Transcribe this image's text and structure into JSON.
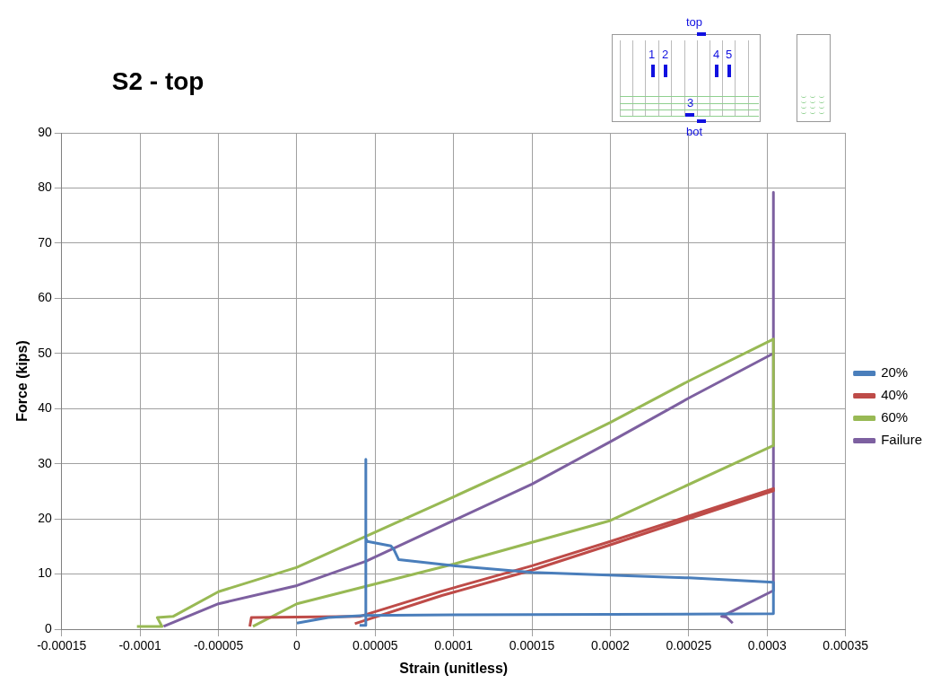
{
  "chart_data": {
    "type": "line",
    "title": "S2 - top",
    "xlabel": "Strain (unitless)",
    "ylabel": "Force (kips)",
    "xlim": [
      -0.00015,
      0.00035
    ],
    "xticks": [
      -0.00015,
      -0.0001,
      {
        "value": -5e-05,
        "label": "-0.00005"
      },
      0,
      {
        "value": 5e-05,
        "label": "0.00005"
      },
      0.0001,
      0.00015,
      0.0002,
      0.00025,
      0.0003,
      0.00035
    ],
    "ylim": [
      0,
      90
    ],
    "yticks": [
      0,
      10,
      20,
      30,
      40,
      50,
      60,
      70,
      80,
      90
    ],
    "grid": true,
    "legend": "right",
    "annotations": [
      "top",
      "1",
      "2",
      "3",
      "4",
      "5",
      "bot"
    ],
    "series": [
      {
        "name": "20%",
        "color": "#4a7ebb",
        "x": [
          0,
          2e-05,
          4.3e-05,
          0.0001,
          0.0002,
          0.000304,
          0.000304,
          0.00025,
          0.00015,
          0.0001,
          6.5e-05,
          6.2e-05,
          6e-05,
          4.5e-05,
          4.4e-05,
          4.4e-05,
          4.4e-05,
          4e-05
        ],
        "values": [
          1.1,
          2.1,
          2.5,
          2.6,
          2.7,
          2.8,
          8.5,
          9.3,
          10.3,
          11.5,
          12.6,
          14.4,
          15.1,
          15.9,
          16.5,
          30.8,
          0.7,
          0.7
        ]
      },
      {
        "name": "40%",
        "color": "#be4b48",
        "x": [
          -3e-05,
          -2.9e-05,
          0,
          4e-05,
          9.25e-05,
          0.00015,
          0.0002,
          0.00025,
          0.000304,
          0.000304,
          0.00025,
          0.0002,
          0.00015,
          9.25e-05,
          3.7e-05
        ],
        "values": [
          0.5,
          2.1,
          2.2,
          2.3,
          6.9,
          11.5,
          15.9,
          20.5,
          25.5,
          25.1,
          20,
          15.3,
          10.7,
          6.1,
          1
        ]
      },
      {
        "name": "60%",
        "color": "#98b954",
        "x": [
          -0.000102,
          -8.6e-05,
          -8.9e-05,
          -7.9e-05,
          -5e-05,
          0,
          5e-05,
          0.0001,
          0.00015,
          0.0002,
          0.00025,
          0.000304,
          0.000304,
          0.0002,
          0.0001,
          0,
          -2.8e-05
        ],
        "values": [
          0.5,
          0.5,
          2.1,
          2.3,
          6.8,
          11.2,
          17.6,
          24,
          30.5,
          37.5,
          45,
          52.6,
          33.3,
          19.7,
          11.8,
          4.6,
          0.5
        ]
      },
      {
        "name": "Failure",
        "color": "#7d60a0",
        "x": [
          -8.5e-05,
          -5e-05,
          0,
          4.4e-05,
          0.0001,
          0.00015,
          0.0002,
          0.00025,
          0.000304,
          0.000304,
          0.000304,
          0.000271,
          0.000274,
          0.000278
        ],
        "values": [
          0.5,
          4.6,
          7.9,
          12.3,
          19.7,
          26.3,
          34,
          41.9,
          50,
          79.2,
          7,
          2.3,
          2.2,
          1.1
        ]
      }
    ]
  }
}
